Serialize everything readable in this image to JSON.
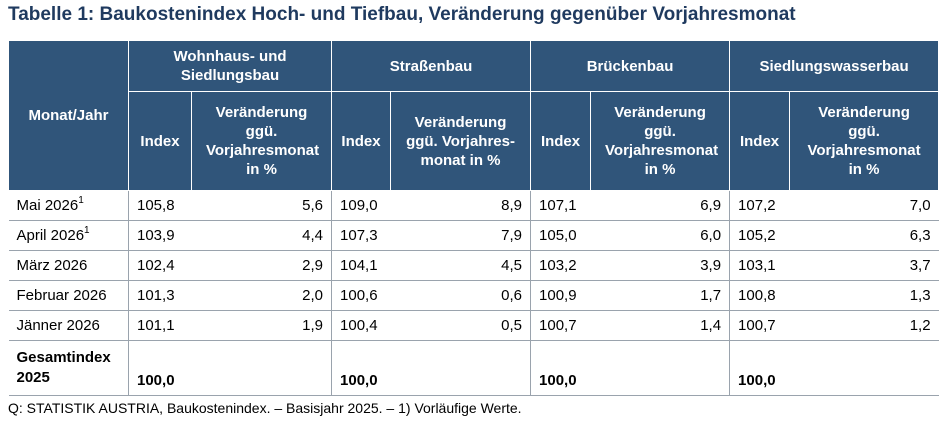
{
  "title": "Tabelle 1: Baukostenindex Hoch- und Tiefbau, Veränderung gegenüber Vorjahresmonat",
  "headers": {
    "month": "Monat/Jahr",
    "groups": [
      "Wohnhaus- und Siedlungsbau",
      "Straßenbau",
      "Brückenbau",
      "Siedlungswasserbau"
    ],
    "index": "Index",
    "change_variants": [
      "Veränderung ggü. Vorjahresmonat in %",
      "Veränderung ggü. Vorjahres-monat in %",
      "Veränderung ggü. Vorjahresmonat in %",
      "Veränderung ggü. Vorjahresmonat in %"
    ]
  },
  "rows": [
    {
      "month": "Mai 2026",
      "sup": "1",
      "values": [
        "105,8",
        "5,6",
        "109,0",
        "8,9",
        "107,1",
        "6,9",
        "107,2",
        "7,0"
      ]
    },
    {
      "month": "April 2026",
      "sup": "1",
      "values": [
        "103,9",
        "4,4",
        "107,3",
        "7,9",
        "105,0",
        "6,0",
        "105,2",
        "6,3"
      ]
    },
    {
      "month": "März 2026",
      "sup": "",
      "values": [
        "102,4",
        "2,9",
        "104,1",
        "4,5",
        "103,2",
        "3,9",
        "103,1",
        "3,7"
      ]
    },
    {
      "month": "Februar 2026",
      "sup": "",
      "values": [
        "101,3",
        "2,0",
        "100,6",
        "0,6",
        "100,9",
        "1,7",
        "100,8",
        "1,3"
      ]
    },
    {
      "month": "Jänner 2026",
      "sup": "",
      "values": [
        "101,1",
        "1,9",
        "100,4",
        "0,5",
        "100,7",
        "1,4",
        "100,7",
        "1,2"
      ]
    }
  ],
  "total": {
    "label": "Gesamtindex 2025",
    "values": [
      "100,0",
      "100,0",
      "100,0",
      "100,0"
    ]
  },
  "note": "Q: STATISTIK AUSTRIA, Baukostenindex. – Basisjahr 2025. – 1) Vorläufige Werte.",
  "colors": {
    "header_bg": "#30557a",
    "title": "#1f3a5f",
    "rule": "#9aa3ad"
  }
}
